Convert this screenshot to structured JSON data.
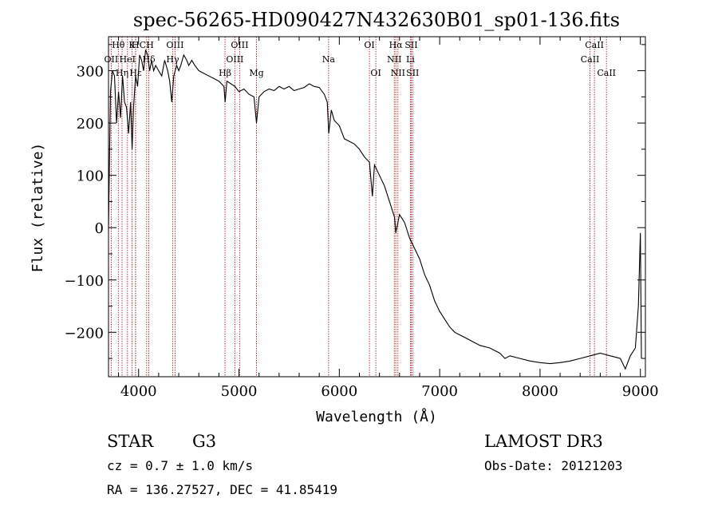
{
  "chart_data": {
    "type": "line",
    "title": "spec-56265-HD090427N432630B01_sp01-136.fits",
    "xlabel": "Wavelength (Å)",
    "ylabel": "Flux (relative)",
    "xlim": [
      3700,
      9050
    ],
    "ylim": [
      -285,
      365
    ],
    "xticks": [
      {
        "value": 4000,
        "label": "4000"
      },
      {
        "value": 5000,
        "label": "5000"
      },
      {
        "value": 6000,
        "label": "6000"
      },
      {
        "value": 7000,
        "label": "7000"
      },
      {
        "value": 8000,
        "label": "8000"
      },
      {
        "value": 9000,
        "label": "9000"
      }
    ],
    "yticks": [
      {
        "value": -200,
        "label": "−200"
      },
      {
        "value": -100,
        "label": "−100"
      },
      {
        "value": 0,
        "label": "0"
      },
      {
        "value": 100,
        "label": "100"
      },
      {
        "value": 200,
        "label": "200"
      },
      {
        "value": 300,
        "label": "300"
      }
    ],
    "line_color": "#000000",
    "marker_color": "#b22222",
    "series": [
      {
        "x": [
          3700,
          3720,
          3740,
          3760,
          3780,
          3800,
          3820,
          3840,
          3860,
          3880,
          3900,
          3920,
          3935,
          3950,
          3970,
          3990,
          4010,
          4030,
          4050,
          4070,
          4090,
          4110,
          4130,
          4150,
          4170,
          4200,
          4230,
          4260,
          4290,
          4310,
          4330,
          4350,
          4380,
          4400,
          4420,
          4450,
          4480,
          4500,
          4530,
          4560,
          4600,
          4650,
          4700,
          4750,
          4800,
          4850,
          4862,
          4880,
          4920,
          4960,
          5000,
          5050,
          5100,
          5150,
          5175,
          5200,
          5250,
          5300,
          5350,
          5400,
          5450,
          5500,
          5550,
          5600,
          5650,
          5700,
          5750,
          5800,
          5850,
          5880,
          5895,
          5920,
          5950,
          6000,
          6050,
          6100,
          6150,
          6200,
          6250,
          6300,
          6330,
          6350,
          6400,
          6450,
          6500,
          6550,
          6563,
          6600,
          6650,
          6700,
          6750,
          6800,
          6850,
          6900,
          6950,
          7000,
          7050,
          7100,
          7150,
          7200,
          7250,
          7300,
          7400,
          7500,
          7600,
          7650,
          7700,
          7800,
          7900,
          8000,
          8100,
          8200,
          8300,
          8400,
          8500,
          8600,
          8700,
          8800,
          8850,
          8900,
          8950,
          8980,
          9000,
          9010
        ],
        "y": [
          0,
          260,
          300,
          290,
          200,
          260,
          210,
          290,
          240,
          230,
          180,
          240,
          150,
          230,
          290,
          270,
          330,
          320,
          300,
          340,
          330,
          300,
          320,
          300,
          310,
          300,
          290,
          320,
          300,
          280,
          240,
          290,
          310,
          300,
          310,
          330,
          320,
          310,
          320,
          310,
          300,
          295,
          290,
          285,
          280,
          270,
          240,
          280,
          275,
          270,
          260,
          265,
          255,
          250,
          200,
          250,
          260,
          265,
          262,
          270,
          265,
          270,
          262,
          265,
          268,
          275,
          270,
          268,
          255,
          240,
          180,
          225,
          205,
          195,
          170,
          165,
          160,
          150,
          135,
          125,
          60,
          120,
          100,
          80,
          50,
          20,
          -10,
          25,
          10,
          -20,
          -40,
          -60,
          -90,
          -110,
          -140,
          -160,
          -175,
          -190,
          -200,
          -205,
          -210,
          -215,
          -225,
          -230,
          -240,
          -250,
          -245,
          -250,
          -255,
          -258,
          -260,
          -258,
          -255,
          -250,
          -245,
          -240,
          -245,
          -250,
          -270,
          -245,
          -230,
          -150,
          -10,
          -250
        ]
      }
    ],
    "line_markers": [
      {
        "label": "Hθ",
        "x": 3798,
        "row": 0
      },
      {
        "label": "OII",
        "x": 3727,
        "row": 1
      },
      {
        "label": "Hη",
        "x": 3835,
        "row": 2
      },
      {
        "label": "K",
        "x": 3934,
        "row": 0
      },
      {
        "label": "HeI",
        "x": 3889,
        "row": 1
      },
      {
        "label": "Hε",
        "x": 3970,
        "row": 2
      },
      {
        "label": "H",
        "x": 3969,
        "row": 0
      },
      {
        "label": "Hδ",
        "x": 4102,
        "row": 1
      },
      {
        "label": "CH",
        "x": 4080,
        "row": 0
      },
      {
        "label": "Hγ",
        "x": 4340,
        "row": 1
      },
      {
        "label": "OIII",
        "x": 4363,
        "row": 0
      },
      {
        "label": "OIII",
        "x": 5007,
        "row": 0
      },
      {
        "label": "OIII",
        "x": 4959,
        "row": 1
      },
      {
        "label": "Hβ",
        "x": 4861,
        "row": 2
      },
      {
        "label": "Mg",
        "x": 5175,
        "row": 3
      },
      {
        "label": "Na",
        "x": 5893,
        "row": 1
      },
      {
        "label": "OI",
        "x": 6300,
        "row": 0
      },
      {
        "label": "OI",
        "x": 6364,
        "row": 2
      },
      {
        "label": "Hα",
        "x": 6563,
        "row": 0
      },
      {
        "label": "NII",
        "x": 6548,
        "row": 1
      },
      {
        "label": "NII",
        "x": 6584,
        "row": 2
      },
      {
        "label": "SII",
        "x": 6717,
        "row": 0
      },
      {
        "label": "Li",
        "x": 6708,
        "row": 1
      },
      {
        "label": "SII",
        "x": 6731,
        "row": 2
      },
      {
        "label": "CaII",
        "x": 8542,
        "row": 0
      },
      {
        "label": "CaII",
        "x": 8498,
        "row": 1
      },
      {
        "label": "CaII",
        "x": 8662,
        "row": 2
      }
    ]
  },
  "info": {
    "object_type": "STAR",
    "subclass": "G3",
    "survey": "LAMOST DR3",
    "cz": "cz = 0.7 ± 1.0 km/s",
    "obs_date": "Obs-Date: 20121203",
    "coords": "RA = 136.27527, DEC =  41.85419"
  }
}
